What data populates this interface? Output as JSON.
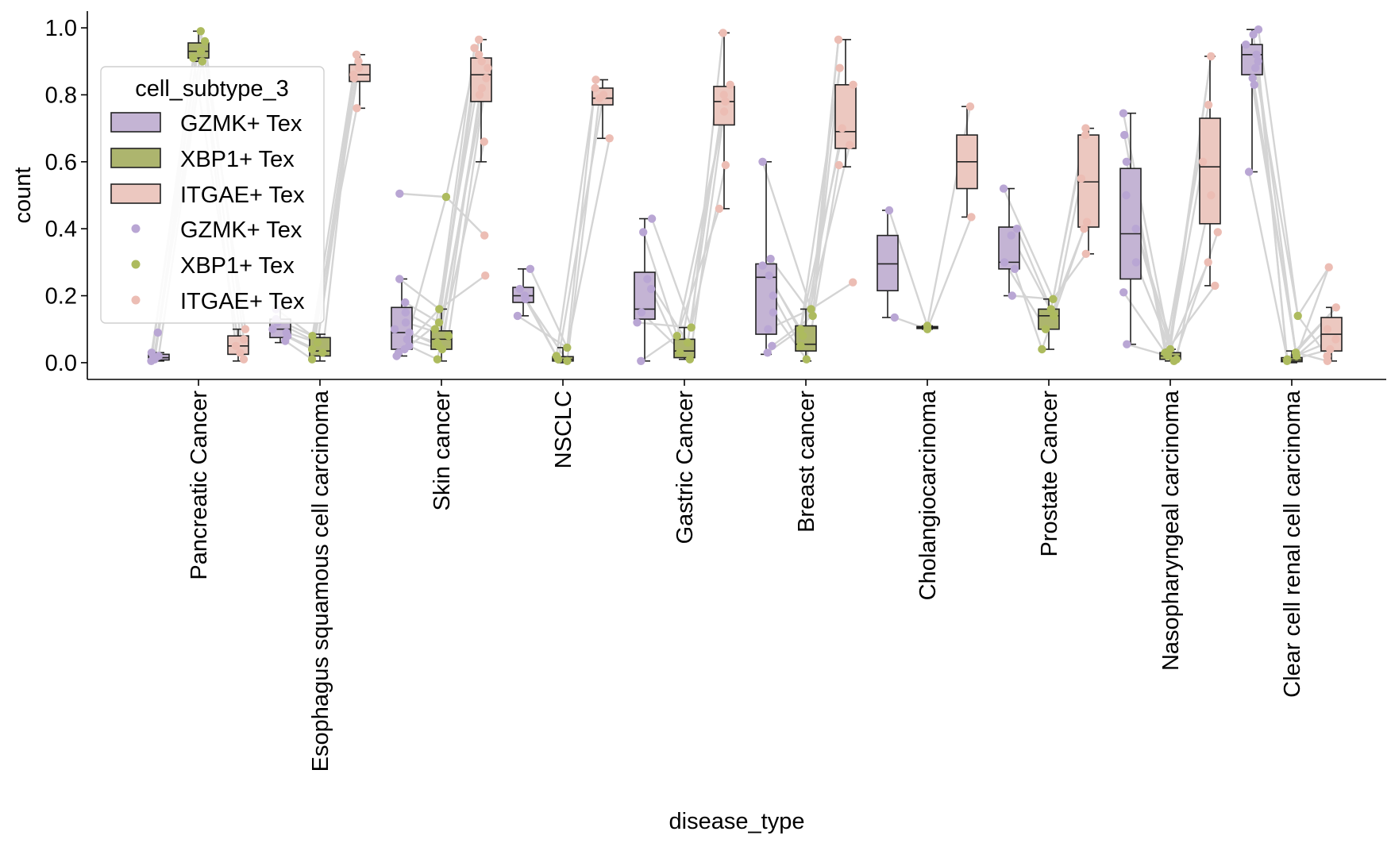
{
  "chart_data": {
    "type": "box",
    "xlabel": "disease_type",
    "ylabel": "count",
    "ylim": [
      -0.05,
      1.05
    ],
    "yticks": [
      0.0,
      0.2,
      0.4,
      0.6,
      0.8,
      1.0
    ],
    "ytick_labels": [
      "0.0",
      "0.2",
      "0.4",
      "0.6",
      "0.8",
      "1.0"
    ],
    "categories": [
      "Pancreatic Cancer",
      "Esophagus squamous cell carcinoma",
      "Skin cancer",
      "NSCLC",
      "Gastric Cancer",
      "Breast cancer",
      "Cholangiocarcinoma",
      "Prostate Cancer",
      "Nasopharyngeal carcinoma",
      "Clear cell renal cell carcinoma"
    ],
    "legend": {
      "title": "cell_subtype_3",
      "position": "upper-left",
      "box_entries": [
        "GZMK+ Tex",
        "XBP1+ Tex",
        "ITGAE+ Tex"
      ],
      "point_entries": [
        "GZMK+ Tex",
        "XBP1+ Tex",
        "ITGAE+ Tex"
      ]
    },
    "series": [
      {
        "name": "GZMK+ Tex",
        "box_color": "#c4b4d4",
        "point_color": "#b9a6d4",
        "boxes": [
          {
            "min": 0.005,
            "q1": 0.008,
            "median": 0.015,
            "q3": 0.025,
            "max": 0.03
          },
          {
            "min": 0.06,
            "q1": 0.075,
            "median": 0.1,
            "q3": 0.13,
            "max": 0.16
          },
          {
            "min": 0.02,
            "q1": 0.04,
            "median": 0.09,
            "q3": 0.165,
            "max": 0.25
          },
          {
            "min": 0.14,
            "q1": 0.18,
            "median": 0.2,
            "q3": 0.225,
            "max": 0.28
          },
          {
            "min": 0.005,
            "q1": 0.13,
            "median": 0.16,
            "q3": 0.27,
            "max": 0.43
          },
          {
            "min": 0.025,
            "q1": 0.085,
            "median": 0.255,
            "q3": 0.295,
            "max": 0.6
          },
          {
            "min": 0.135,
            "q1": 0.215,
            "median": 0.295,
            "q3": 0.38,
            "max": 0.455
          },
          {
            "min": 0.2,
            "q1": 0.28,
            "median": 0.3,
            "q3": 0.405,
            "max": 0.52
          },
          {
            "min": 0.055,
            "q1": 0.25,
            "median": 0.385,
            "q3": 0.58,
            "max": 0.745
          },
          {
            "min": 0.57,
            "q1": 0.86,
            "median": 0.92,
            "q3": 0.95,
            "max": 0.995
          }
        ],
        "points": [
          [
            0.09,
            0.02,
            0.01,
            0.005,
            0.015,
            0.03
          ],
          [
            0.16,
            0.12,
            0.1,
            0.08,
            0.065,
            0.13,
            0.09
          ],
          [
            0.505,
            0.25,
            0.18,
            0.15,
            0.12,
            0.1,
            0.09,
            0.07,
            0.05,
            0.04,
            0.03,
            0.02
          ],
          [
            0.28,
            0.22,
            0.2,
            0.19,
            0.14
          ],
          [
            0.43,
            0.39,
            0.25,
            0.22,
            0.15,
            0.12,
            0.005
          ],
          [
            0.6,
            0.31,
            0.29,
            0.26,
            0.2,
            0.15,
            0.1,
            0.05,
            0.03
          ],
          [
            0.455,
            0.135
          ],
          [
            0.52,
            0.4,
            0.38,
            0.3,
            0.28,
            0.2
          ],
          [
            0.745,
            0.68,
            0.6,
            0.5,
            0.4,
            0.3,
            0.21,
            0.055
          ],
          [
            0.995,
            0.98,
            0.95,
            0.92,
            0.9,
            0.88,
            0.85,
            0.83,
            0.57
          ]
        ]
      },
      {
        "name": "XBP1+ Tex",
        "box_color": "#adb56e",
        "point_color": "#adbb5e",
        "boxes": [
          {
            "min": 0.9,
            "q1": 0.91,
            "median": 0.93,
            "q3": 0.955,
            "max": 0.99
          },
          {
            "min": 0.005,
            "q1": 0.02,
            "median": 0.035,
            "q3": 0.075,
            "max": 0.085
          },
          {
            "min": 0.005,
            "q1": 0.04,
            "median": 0.07,
            "q3": 0.095,
            "max": 0.16
          },
          {
            "min": 0.0,
            "q1": 0.005,
            "median": 0.01,
            "q3": 0.018,
            "max": 0.045
          },
          {
            "min": 0.01,
            "q1": 0.015,
            "median": 0.035,
            "q3": 0.07,
            "max": 0.105
          },
          {
            "min": 0.005,
            "q1": 0.035,
            "median": 0.055,
            "q3": 0.11,
            "max": 0.16
          },
          {
            "min": 0.1,
            "q1": 0.102,
            "median": 0.105,
            "q3": 0.108,
            "max": 0.11
          },
          {
            "min": 0.04,
            "q1": 0.1,
            "median": 0.14,
            "q3": 0.16,
            "max": 0.19
          },
          {
            "min": 0.005,
            "q1": 0.01,
            "median": 0.02,
            "q3": 0.03,
            "max": 0.04
          },
          {
            "min": 0.0,
            "q1": 0.003,
            "median": 0.008,
            "q3": 0.015,
            "max": 0.035
          }
        ],
        "points": [
          [
            0.99,
            0.96,
            0.93,
            0.91,
            0.9
          ],
          [
            0.08,
            0.06,
            0.04,
            0.03,
            0.01
          ],
          [
            0.495,
            0.16,
            0.12,
            0.1,
            0.08,
            0.06,
            0.05,
            0.04,
            0.01
          ],
          [
            0.045,
            0.02,
            0.01,
            0.005
          ],
          [
            0.105,
            0.08,
            0.06,
            0.03,
            0.01
          ],
          [
            0.16,
            0.14,
            0.1,
            0.08,
            0.05,
            0.01
          ],
          [
            0.11,
            0.1
          ],
          [
            0.19,
            0.16,
            0.14,
            0.1,
            0.04
          ],
          [
            0.04,
            0.03,
            0.02,
            0.01,
            0.005
          ],
          [
            0.14,
            0.03,
            0.02,
            0.01,
            0.005
          ]
        ]
      },
      {
        "name": "ITGAE+ Tex",
        "box_color": "#ecc8c0",
        "point_color": "#ecbdb4",
        "boxes": [
          {
            "min": 0.005,
            "q1": 0.025,
            "median": 0.05,
            "q3": 0.08,
            "max": 0.1
          },
          {
            "min": 0.76,
            "q1": 0.84,
            "median": 0.86,
            "q3": 0.89,
            "max": 0.92
          },
          {
            "min": 0.6,
            "q1": 0.78,
            "median": 0.86,
            "q3": 0.91,
            "max": 0.965
          },
          {
            "min": 0.67,
            "q1": 0.77,
            "median": 0.79,
            "q3": 0.82,
            "max": 0.845
          },
          {
            "min": 0.46,
            "q1": 0.71,
            "median": 0.78,
            "q3": 0.825,
            "max": 0.985
          },
          {
            "min": 0.585,
            "q1": 0.64,
            "median": 0.69,
            "q3": 0.83,
            "max": 0.965
          },
          {
            "min": 0.435,
            "q1": 0.52,
            "median": 0.6,
            "q3": 0.68,
            "max": 0.765
          },
          {
            "min": 0.325,
            "q1": 0.405,
            "median": 0.54,
            "q3": 0.68,
            "max": 0.7
          },
          {
            "min": 0.23,
            "q1": 0.415,
            "median": 0.585,
            "q3": 0.73,
            "max": 0.915
          },
          {
            "min": 0.005,
            "q1": 0.035,
            "median": 0.085,
            "q3": 0.135,
            "max": 0.165
          }
        ],
        "points": [
          [
            0.1,
            0.07,
            0.05,
            0.03,
            0.01
          ],
          [
            0.92,
            0.9,
            0.88,
            0.86,
            0.85,
            0.76
          ],
          [
            0.965,
            0.94,
            0.92,
            0.9,
            0.88,
            0.85,
            0.82,
            0.8,
            0.66,
            0.38,
            0.26
          ],
          [
            0.845,
            0.82,
            0.8,
            0.79,
            0.67
          ],
          [
            0.985,
            0.83,
            0.8,
            0.78,
            0.75,
            0.59,
            0.46
          ],
          [
            0.965,
            0.88,
            0.83,
            0.7,
            0.65,
            0.59,
            0.24
          ],
          [
            0.765,
            0.435
          ],
          [
            0.7,
            0.68,
            0.55,
            0.42,
            0.4,
            0.325
          ],
          [
            0.915,
            0.77,
            0.6,
            0.5,
            0.39,
            0.3,
            0.23
          ],
          [
            0.285,
            0.165,
            0.1,
            0.07,
            0.04,
            0.02,
            0.005
          ]
        ]
      }
    ]
  }
}
